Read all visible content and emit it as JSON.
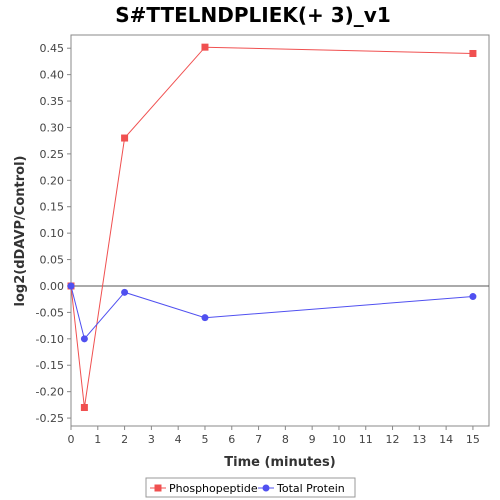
{
  "chart_data": {
    "type": "line",
    "title": "S#TTELNDPLIEK(+ 3)_v1",
    "xlabel": "Time (minutes)",
    "ylabel": "log2(dDAVP/Control)",
    "xlim": [
      0,
      15.6
    ],
    "ylim": [
      -0.265,
      0.475
    ],
    "x_ticks": [
      0,
      1,
      2,
      3,
      4,
      5,
      6,
      7,
      8,
      9,
      10,
      11,
      12,
      13,
      14,
      15
    ],
    "y_ticks": [
      -0.25,
      -0.2,
      -0.15,
      -0.1,
      -0.05,
      0.0,
      0.05,
      0.1,
      0.15,
      0.2,
      0.25,
      0.3,
      0.35,
      0.4,
      0.45
    ],
    "y_tick_labels": [
      "-0.25",
      "-0.20",
      "-0.15",
      "-0.10",
      "-0.05",
      "0.00",
      "0.05",
      "0.10",
      "0.15",
      "0.20",
      "0.25",
      "0.30",
      "0.35",
      "0.40",
      "0.45"
    ],
    "grid": false,
    "zero_line": true,
    "legend_position": "bottom",
    "series": [
      {
        "name": "Phosphopeptide",
        "color": "#f05050",
        "marker": "square",
        "x": [
          0,
          0.5,
          2,
          5,
          15
        ],
        "y": [
          0.0,
          -0.23,
          0.28,
          0.452,
          0.44
        ]
      },
      {
        "name": "Total Protein",
        "color": "#5050f0",
        "marker": "circle",
        "x": [
          0,
          0.5,
          2,
          5,
          15
        ],
        "y": [
          0.0,
          -0.1,
          -0.012,
          -0.06,
          -0.02
        ]
      }
    ]
  }
}
